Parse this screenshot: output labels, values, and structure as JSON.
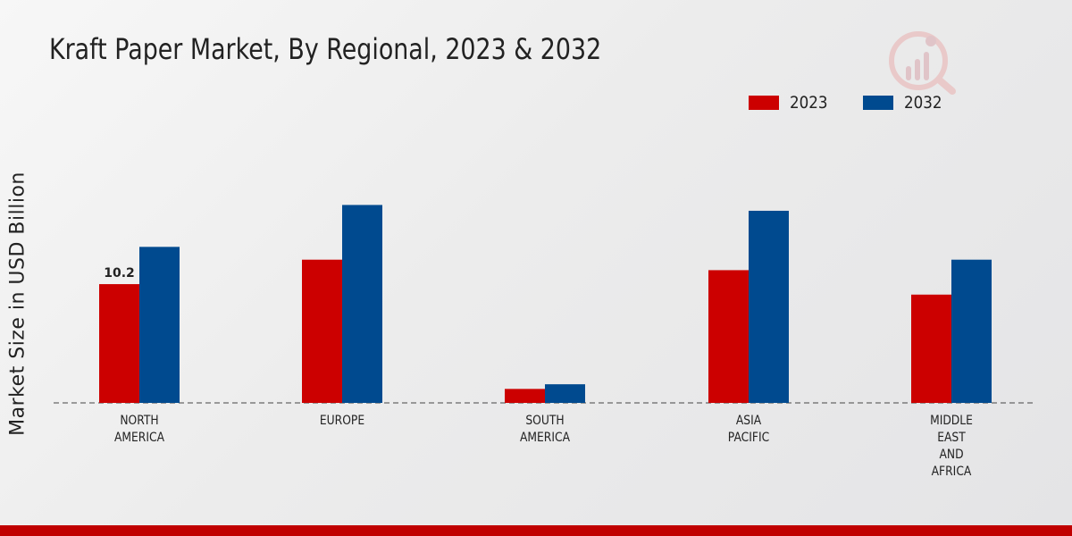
{
  "title": "Kraft Paper Market, By Regional, 2023 & 2032",
  "colors": {
    "s2023": "#cc0000",
    "s2032": "#004a8f",
    "footer": "#c00000"
  },
  "chart_data": {
    "type": "bar",
    "title": "Kraft Paper Market, By Regional, 2023 & 2032",
    "xlabel": "",
    "ylabel": "Market Size in USD Billion",
    "ylim": [
      0,
      30
    ],
    "legend_position": "top-right",
    "categories": [
      [
        "NORTH",
        "AMERICA"
      ],
      [
        "EUROPE"
      ],
      [
        "SOUTH",
        "AMERICA"
      ],
      [
        "ASIA",
        "PACIFIC"
      ],
      [
        "MIDDLE",
        "EAST",
        "AND",
        "AFRICA"
      ]
    ],
    "series": [
      {
        "name": "2023",
        "values": [
          10.2,
          12.3,
          1.2,
          11.4,
          9.3
        ]
      },
      {
        "name": "2032",
        "values": [
          13.4,
          17.0,
          1.6,
          16.5,
          12.3
        ]
      }
    ],
    "data_labels": [
      {
        "series": 0,
        "index": 0,
        "text": "10.2"
      }
    ]
  }
}
